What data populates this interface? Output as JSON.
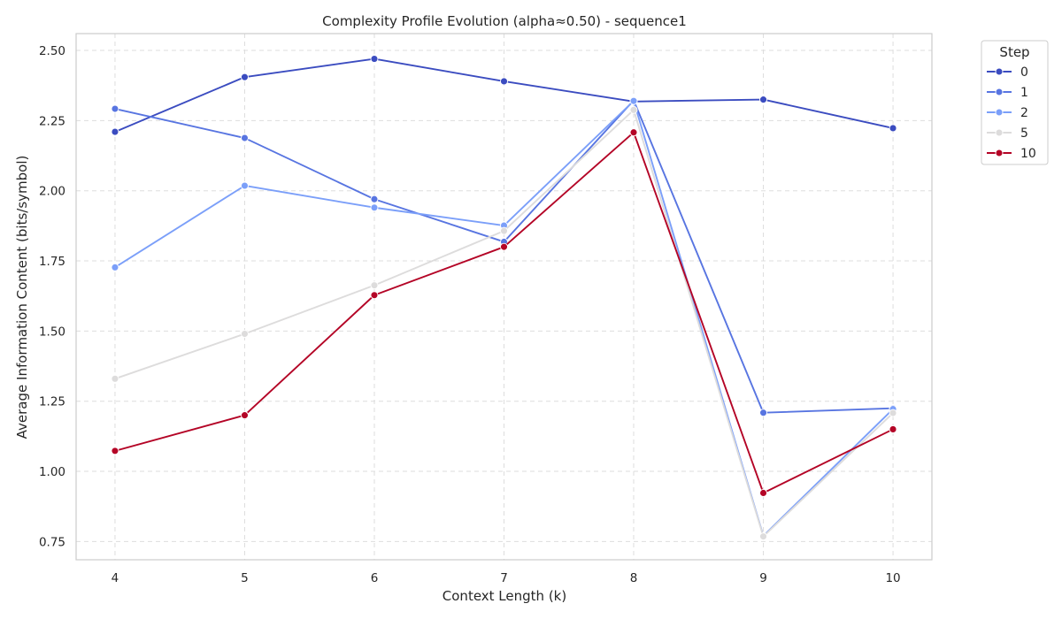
{
  "chart_data": {
    "type": "line",
    "title": "Complexity Profile Evolution (alpha≈0.50) - sequence1",
    "xlabel": "Context Length (k)",
    "ylabel": "Average Information Content (bits/symbol)",
    "x": [
      4,
      5,
      6,
      7,
      8,
      9,
      10
    ],
    "xlim": [
      3.7,
      10.3
    ],
    "ylim": [
      0.685,
      2.56
    ],
    "yticks": [
      0.75,
      1.0,
      1.25,
      1.5,
      1.75,
      2.0,
      2.25,
      2.5
    ],
    "ytick_labels": [
      "0.75",
      "1.00",
      "1.25",
      "1.50",
      "1.75",
      "2.00",
      "2.25",
      "2.50"
    ],
    "xtick_labels": [
      "4",
      "5",
      "6",
      "7",
      "8",
      "9",
      "10"
    ],
    "grid": true,
    "legend": {
      "title": "Step",
      "placement": "outside-top-right"
    },
    "series": [
      {
        "name": "0",
        "color": "#3b4cc0",
        "values": [
          2.21,
          2.405,
          2.47,
          2.39,
          2.318,
          2.325,
          2.223
        ]
      },
      {
        "name": "1",
        "color": "#5875e1",
        "values": [
          2.292,
          2.188,
          1.97,
          1.818,
          2.322,
          1.209,
          1.225
        ]
      },
      {
        "name": "2",
        "color": "#7b9ff9",
        "values": [
          1.727,
          2.018,
          1.94,
          1.876,
          2.32,
          0.77,
          1.222
        ]
      },
      {
        "name": "5",
        "color": "#dddcdc",
        "values": [
          1.33,
          1.49,
          1.663,
          1.857,
          2.288,
          0.768,
          1.208
        ]
      },
      {
        "name": "10",
        "color": "#b40426",
        "values": [
          1.073,
          1.2,
          1.628,
          1.8,
          2.208,
          0.923,
          1.15
        ]
      }
    ]
  }
}
